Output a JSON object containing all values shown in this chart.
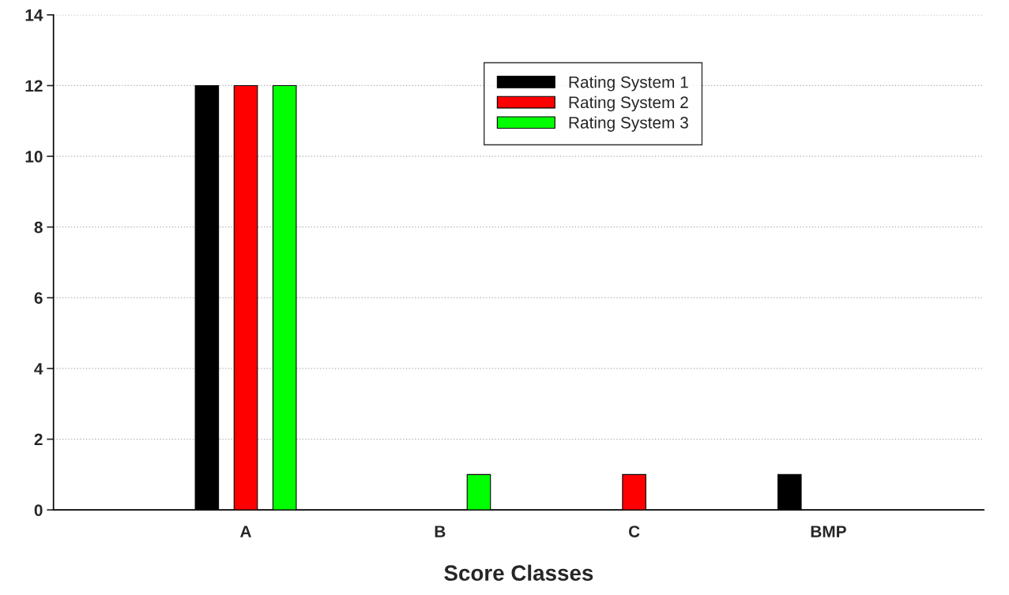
{
  "chart_data": {
    "type": "bar",
    "xlabel": "Score Classes",
    "categories": [
      "A",
      "B",
      "C",
      "BMP"
    ],
    "series": [
      {
        "name": "Rating System 1",
        "color": "#000000",
        "values": [
          12,
          0,
          0,
          1
        ]
      },
      {
        "name": "Rating System 2",
        "color": "#ff0000",
        "values": [
          12,
          0,
          1,
          0
        ]
      },
      {
        "name": "Rating System 3",
        "color": "#00ff00",
        "values": [
          12,
          1,
          0,
          0
        ]
      }
    ],
    "ylim": [
      0,
      14
    ],
    "yticks": [
      0,
      2,
      4,
      6,
      8,
      10,
      12,
      14
    ],
    "grid": "y",
    "legend": "top"
  }
}
